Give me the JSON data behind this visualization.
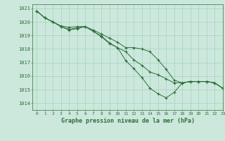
{
  "title": "Graphe pression niveau de la mer (hPa)",
  "background_color": "#cce8dc",
  "grid_color": "#99ccb8",
  "line_color": "#2d6e3a",
  "xlim": [
    -0.5,
    23
  ],
  "ylim": [
    1013.5,
    1021.3
  ],
  "yticks": [
    1014,
    1015,
    1016,
    1017,
    1018,
    1019,
    1020,
    1021
  ],
  "xticks": [
    0,
    1,
    2,
    3,
    4,
    5,
    6,
    7,
    8,
    9,
    10,
    11,
    12,
    13,
    14,
    15,
    16,
    17,
    18,
    19,
    20,
    21,
    22,
    23
  ],
  "series": [
    {
      "x": [
        0,
        1,
        2,
        3,
        4,
        5,
        6,
        7,
        8,
        9,
        10,
        11,
        12,
        13,
        14,
        15,
        16,
        17,
        18,
        19,
        20,
        21,
        22,
        23
      ],
      "y": [
        1020.8,
        1020.3,
        1020.0,
        1019.7,
        1019.6,
        1019.65,
        1019.65,
        1019.4,
        1019.1,
        1018.8,
        1018.5,
        1018.1,
        1018.1,
        1018.0,
        1017.8,
        1017.2,
        1016.5,
        1015.7,
        1015.5,
        1015.6,
        1015.6,
        1015.6,
        1015.5,
        1015.1
      ]
    },
    {
      "x": [
        0,
        1,
        2,
        3,
        4,
        5,
        6,
        7,
        8,
        9,
        10,
        11,
        12,
        13,
        14,
        15,
        16,
        17,
        18,
        19,
        20,
        21,
        22,
        23
      ],
      "y": [
        1020.8,
        1020.3,
        1020.0,
        1019.65,
        1019.45,
        1019.55,
        1019.65,
        1019.3,
        1018.95,
        1018.45,
        1018.1,
        1017.8,
        1017.2,
        1016.8,
        1016.3,
        1016.1,
        1015.8,
        1015.5,
        1015.5,
        1015.6,
        1015.6,
        1015.6,
        1015.5,
        1015.1
      ]
    },
    {
      "x": [
        0,
        1,
        2,
        3,
        4,
        5,
        6,
        7,
        8,
        9,
        10,
        11,
        12,
        13,
        14,
        15,
        16,
        17,
        18,
        19,
        20,
        21,
        22,
        23
      ],
      "y": [
        1020.8,
        1020.3,
        1020.0,
        1019.65,
        1019.4,
        1019.5,
        1019.65,
        1019.3,
        1018.9,
        1018.4,
        1018.1,
        1017.15,
        1016.55,
        1015.9,
        1015.1,
        1014.7,
        1014.4,
        1014.8,
        1015.5,
        1015.6,
        1015.6,
        1015.6,
        1015.5,
        1015.1
      ]
    }
  ]
}
